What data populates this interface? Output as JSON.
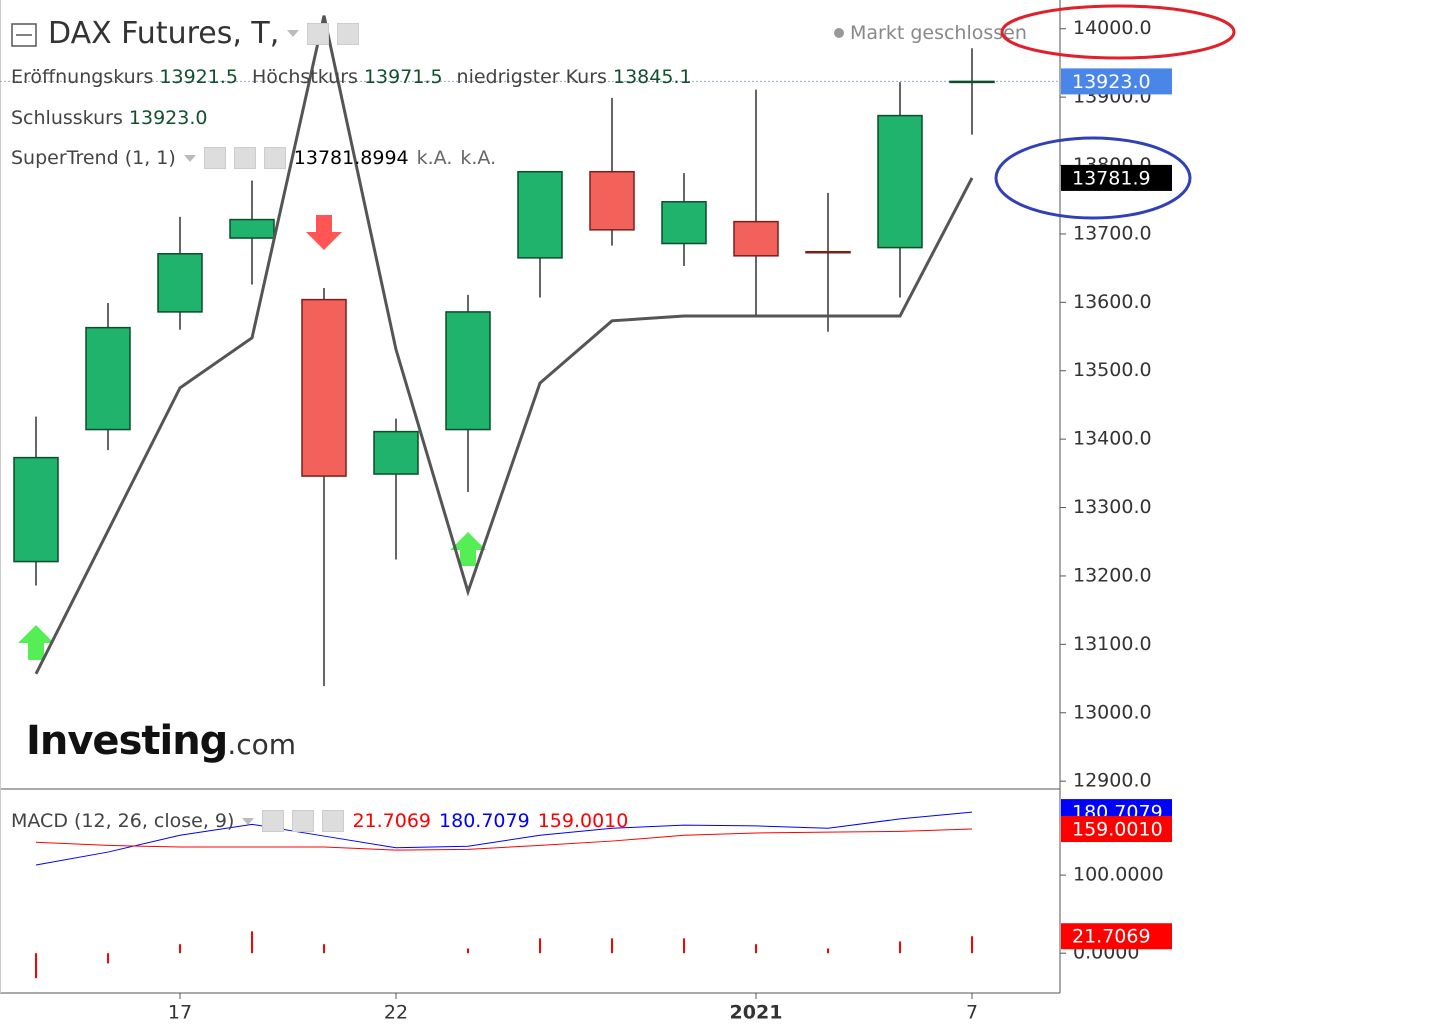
{
  "chart_data": [
    {
      "type": "candlestick",
      "title": "DAX Futures, T,",
      "status": "Markt geschlossen",
      "ohlc_legend": [
        {
          "label": "Eröffnungskurs",
          "value": "13921.5"
        },
        {
          "label": "Höchstkurs",
          "value": "13971.5"
        },
        {
          "label": "niedrigster Kurs",
          "value": "13845.1"
        },
        {
          "label": "Schlusskurs",
          "value": "13923.0"
        }
      ],
      "categories": [
        null,
        null,
        "17",
        null,
        null,
        "22",
        null,
        null,
        null,
        null,
        "2021",
        null,
        null,
        "7"
      ],
      "open": [
        13221,
        13414,
        13586,
        13694,
        13604,
        13349,
        13414,
        13665,
        13791,
        13686,
        13718,
        13674,
        13680,
        13921.5
      ],
      "high": [
        13433,
        13599,
        13725,
        13778,
        13621,
        13430,
        13611,
        13791,
        13899,
        13789,
        13911,
        13760,
        13922,
        13971.5
      ],
      "low": [
        13186,
        13384,
        13560,
        13626,
        13039,
        13224,
        13323,
        13607,
        13683,
        13653,
        13580,
        13557,
        13607,
        13845.1
      ],
      "close": [
        13373,
        13563,
        13671,
        13721,
        13346,
        13411,
        13586,
        13791,
        13706,
        13747,
        13668,
        13673,
        13873,
        13923.0
      ],
      "up_color": "#1fb36b",
      "down_color": "#f2625a",
      "series": [
        {
          "name": "SuperTrend (1, 1)",
          "color": "#555555",
          "values": [
            13057,
            13266,
            13475,
            13548,
            14019,
            13531,
            13177,
            13482,
            13573,
            13580,
            13580,
            13580,
            13580,
            13781.9
          ]
        }
      ],
      "legend_values": [
        "13781.8994",
        "k.A.",
        "k.A."
      ],
      "ylim": [
        12890,
        14042
      ],
      "yticks": [
        {
          "value": 12900,
          "label": "12900.0"
        },
        {
          "value": 13000,
          "label": "13000.0"
        },
        {
          "value": 13100,
          "label": "13100.0"
        },
        {
          "value": 13200,
          "label": "13200.0"
        },
        {
          "value": 13300,
          "label": "13300.0"
        },
        {
          "value": 13400,
          "label": "13400.0"
        },
        {
          "value": 13500,
          "label": "13500.0"
        },
        {
          "value": 13600,
          "label": "13600.0"
        },
        {
          "value": 13700,
          "label": "13700.0"
        },
        {
          "value": 13800,
          "label": "13800.0"
        },
        {
          "value": 13900,
          "label": "13900.0"
        },
        {
          "value": 14000,
          "label": "14000.0"
        }
      ],
      "price_labels": [
        {
          "value": 13923.0,
          "label": "13923.0",
          "color": "#4a86e8"
        },
        {
          "value": 13781.9,
          "label": "13781.9",
          "color": "#000000"
        }
      ],
      "watermark": [
        "Investing",
        ".com"
      ]
    },
    {
      "type": "macd",
      "title": "MACD (12, 26, close, 9)",
      "series": [
        {
          "type": "bar",
          "color": "#ff0000",
          "values": [
            -32,
            -13,
            11.5,
            28,
            11.5,
            0,
            6,
            19,
            19,
            19,
            11.5,
            6,
            15,
            21.7069
          ]
        },
        {
          "type": "line",
          "color": "#0000ff",
          "values": [
            113,
            129.5,
            151,
            165,
            150,
            135,
            137,
            151,
            160,
            164,
            163,
            160,
            172,
            180.7079
          ]
        },
        {
          "type": "line",
          "color": "#ff0000",
          "values": [
            142,
            138,
            136,
            136,
            136,
            132,
            133,
            138,
            143.6,
            151,
            154,
            155,
            156,
            159.001
          ]
        }
      ],
      "legend_values": [
        "21.7069",
        "180.7079",
        "159.0010"
      ],
      "ylim": [
        -51,
        209
      ],
      "yticks": [
        {
          "value": 0,
          "label": "0.0000"
        },
        {
          "value": 100,
          "label": "100.0000"
        }
      ],
      "price_labels": [
        {
          "value": 180.7079,
          "label": "180.7079",
          "color": "#0000ff"
        },
        {
          "value": 159.001,
          "label": "159.0010",
          "color": "#ff0000"
        },
        {
          "value": 21.7069,
          "label": "21.7069",
          "color": "#ff0000"
        }
      ]
    }
  ]
}
